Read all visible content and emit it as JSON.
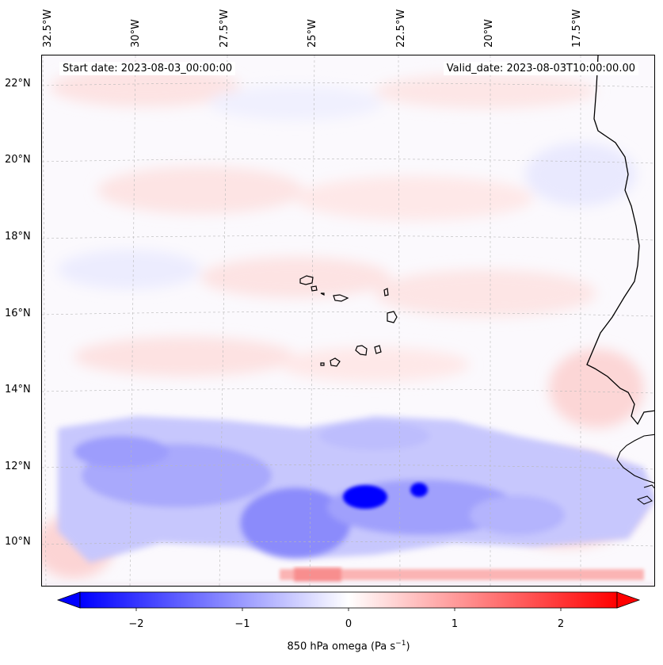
{
  "map": {
    "start_date": "Start date: 2023-08-03_00:00:00",
    "valid_date": "Valid_date: 2023-08-03T10:00:00.00",
    "lon_labels": [
      "32.5°W",
      "30°W",
      "27.5°W",
      "25°W",
      "22.5°W",
      "20°W",
      "17.5°W"
    ],
    "lat_labels": [
      "22°N",
      "20°N",
      "18°N",
      "16°N",
      "14°N",
      "12°N",
      "10°N"
    ],
    "colors": {
      "negative": "#0000ff",
      "neutral": "#ffffff",
      "positive": "#ff0000",
      "coast": "#000000"
    }
  },
  "colorbar": {
    "label_main": "850 hPa omega (Pa s",
    "label_sup": "−1",
    "label_end": ")",
    "ticks": [
      "−2",
      "−1",
      "0",
      "1",
      "2"
    ],
    "range": [
      -2.6,
      2.6
    ]
  }
}
